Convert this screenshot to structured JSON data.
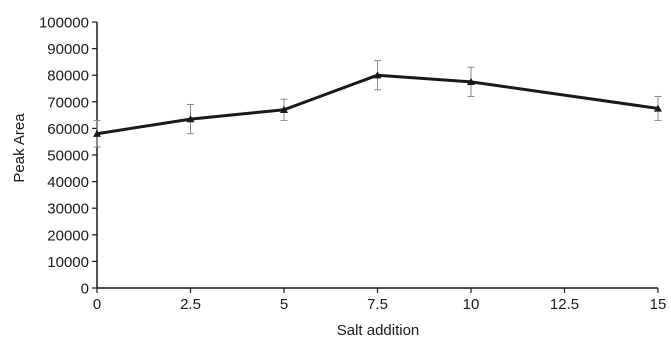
{
  "chart_data": {
    "type": "line",
    "title": "",
    "xlabel": "Salt addition",
    "ylabel": "Peak Area",
    "xlim": [
      0,
      15
    ],
    "ylim": [
      0,
      100000
    ],
    "x_ticks": [
      0,
      2.5,
      5,
      7.5,
      10,
      12.5,
      15
    ],
    "x_tick_labels": [
      "0",
      "2.5",
      "5",
      "7.5",
      "10",
      "12.5",
      "15"
    ],
    "y_ticks": [
      0,
      10000,
      20000,
      30000,
      40000,
      50000,
      60000,
      70000,
      80000,
      90000,
      100000
    ],
    "y_tick_labels": [
      "0",
      "10000",
      "20000",
      "30000",
      "40000",
      "50000",
      "60000",
      "70000",
      "80000",
      "90000",
      "100000"
    ],
    "grid": false,
    "legend": "none",
    "series": [
      {
        "x": [
          0,
          2.5,
          5,
          7.5,
          10,
          15
        ],
        "y": [
          58000,
          63500,
          67000,
          80000,
          77500,
          67500
        ],
        "error": [
          5000,
          5500,
          4000,
          5500,
          5500,
          4500
        ],
        "marker": "triangle",
        "color": "#1a1a1a"
      }
    ]
  }
}
